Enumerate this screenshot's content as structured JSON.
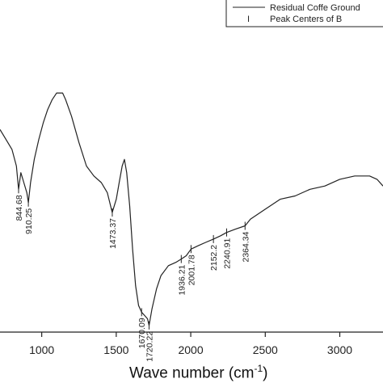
{
  "chart_data": {
    "type": "line",
    "title": "",
    "xlabel": "Wave number",
    "xlabel_unit_base": "(cm",
    "xlabel_unit_exp": "-1",
    "xlabel_unit_close": ")",
    "ylabel": "",
    "xlim": [
      720,
      3290
    ],
    "ylim": [
      0,
      100
    ],
    "x_ticks": [
      1000,
      1500,
      2000,
      2500,
      3000
    ],
    "x_tick_labels": [
      "1000",
      "1500",
      "2000",
      "2500",
      "3000"
    ],
    "legend_placement": "top-right",
    "series": [
      {
        "name": "Residual Coffe Ground",
        "color": "#222222",
        "x": [
          720,
          760,
          800,
          830,
          844.68,
          860,
          880,
          900,
          910.25,
          925,
          950,
          980,
          1010,
          1040,
          1070,
          1100,
          1120,
          1140,
          1160,
          1200,
          1250,
          1300,
          1350,
          1400,
          1440,
          1473.37,
          1500,
          1520,
          1540,
          1555,
          1570,
          1590,
          1610,
          1630,
          1650,
          1670.09,
          1690,
          1710,
          1720.22,
          1740,
          1770,
          1800,
          1850,
          1900,
          1936.21,
          1970,
          2001.78,
          2050,
          2100,
          2152.2,
          2200,
          2240.91,
          2300,
          2364.34,
          2400,
          2500,
          2600,
          2700,
          2800,
          2900,
          3000,
          3100,
          3150,
          3200,
          3250,
          3290
        ],
        "y": [
          61,
          58,
          55,
          50,
          43,
          48,
          45,
          42,
          39,
          45,
          52,
          58,
          63,
          67,
          70,
          72,
          72,
          72,
          70,
          65,
          57,
          50,
          47,
          45,
          42,
          36,
          40,
          45,
          50,
          52,
          48,
          38,
          25,
          14,
          8,
          6,
          5,
          4,
          2,
          7,
          13,
          17,
          20,
          21,
          22,
          23,
          25,
          26,
          27,
          28,
          29,
          30,
          31,
          32,
          34,
          37,
          40,
          41,
          43,
          44,
          46,
          47,
          47,
          47,
          46,
          44
        ]
      }
    ],
    "peak_series_name": "Peak Centers of B",
    "peak_marker_symbol": "I",
    "peaks": [
      {
        "x": 844.68,
        "label": "844.68"
      },
      {
        "x": 910.25,
        "label": "910.25"
      },
      {
        "x": 1473.37,
        "label": "1473.37"
      },
      {
        "x": 1670.09,
        "label": "1670.09"
      },
      {
        "x": 1720.22,
        "label": "1720.22"
      },
      {
        "x": 1936.21,
        "label": "1936.21"
      },
      {
        "x": 2001.78,
        "label": "2001.78"
      },
      {
        "x": 2152.2,
        "label": "2152.2"
      },
      {
        "x": 2240.91,
        "label": "2240.91"
      },
      {
        "x": 2364.34,
        "label": "2364.34"
      }
    ]
  }
}
